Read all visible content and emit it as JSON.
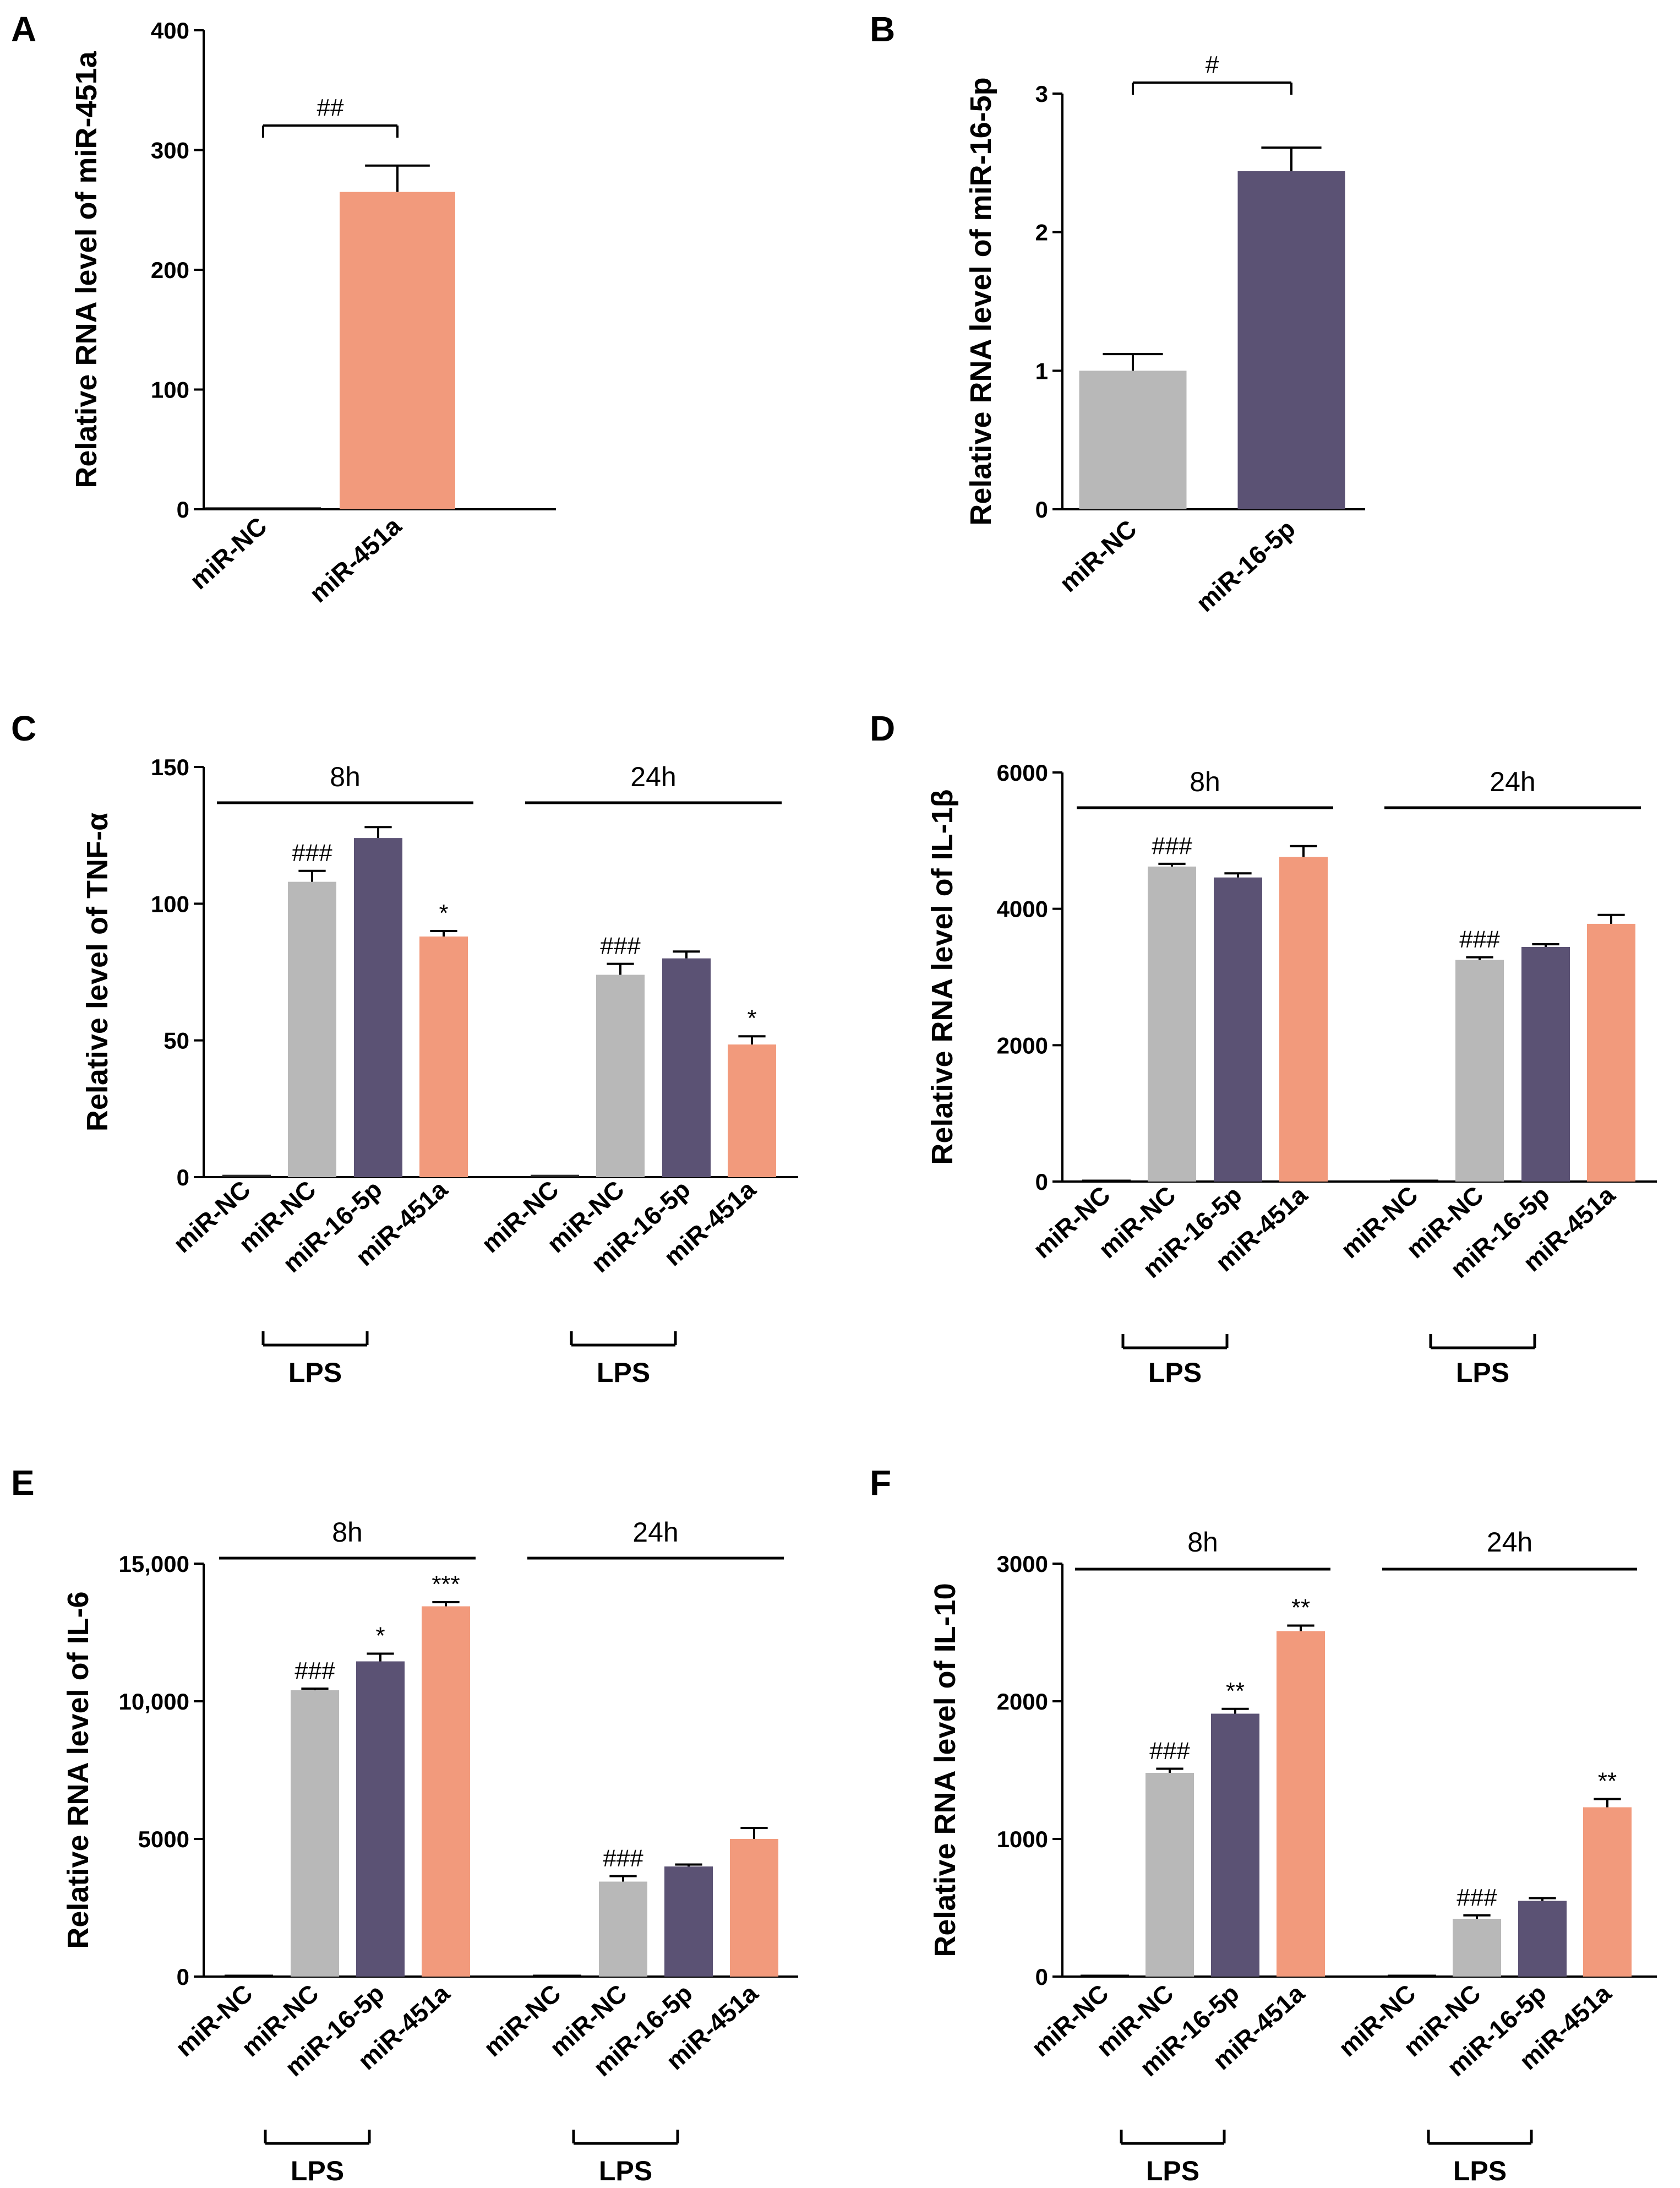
{
  "colors": {
    "miR-NC": "#b8b8b8",
    "miR-16-5p": "#5b5274",
    "miR-451a": "#f29a7c",
    "axis": "#000000"
  },
  "chart_data": [
    {
      "panel": "A",
      "type": "bar",
      "ylabel": "Relative RNA level of miR-451a",
      "ylim": [
        0,
        400
      ],
      "yticks": [
        "0",
        "100",
        "200",
        "300",
        "400"
      ],
      "categories": [
        "miR-NC",
        "miR-451a"
      ],
      "bars": [
        {
          "category": "miR-NC",
          "value": 1,
          "error": 0,
          "color": "#b8b8b8"
        },
        {
          "category": "miR-451a",
          "value": 265,
          "error": 22,
          "color": "#f29a7c"
        }
      ],
      "comparison": {
        "from": 0,
        "to": 1,
        "label": "##"
      }
    },
    {
      "panel": "B",
      "type": "bar",
      "ylabel": "Relative RNA level of miR-16-5p",
      "ylim": [
        0,
        3
      ],
      "yticks": [
        "0",
        "1",
        "2",
        "3"
      ],
      "categories": [
        "miR-NC",
        "miR-16-5p"
      ],
      "bars": [
        {
          "category": "miR-NC",
          "value": 1.0,
          "error": 0.12,
          "color": "#b8b8b8"
        },
        {
          "category": "miR-16-5p",
          "value": 2.44,
          "error": 0.17,
          "color": "#5b5274"
        }
      ],
      "comparison": {
        "from": 0,
        "to": 1,
        "label": "#"
      }
    },
    {
      "panel": "C",
      "type": "bar",
      "ylabel": "Relative level of TNF-α",
      "ylim": [
        0,
        150
      ],
      "yticks": [
        "0",
        "50",
        "100",
        "150"
      ],
      "categories": [
        "miR-NC",
        "miR-NC",
        "miR-16-5p",
        "miR-451a"
      ],
      "groups": [
        {
          "label": "8h",
          "lps_label": "LPS",
          "bars": [
            {
              "category": "miR-NC",
              "value": 1,
              "error": 0,
              "color": "#b8b8b8",
              "sig": ""
            },
            {
              "category": "miR-NC",
              "value": 108,
              "error": 4,
              "color": "#b8b8b8",
              "sig": "###"
            },
            {
              "category": "miR-16-5p",
              "value": 124,
              "error": 4,
              "color": "#5b5274",
              "sig": ""
            },
            {
              "category": "miR-451a",
              "value": 88,
              "error": 2,
              "color": "#f29a7c",
              "sig": "*"
            }
          ]
        },
        {
          "label": "24h",
          "lps_label": "LPS",
          "bars": [
            {
              "category": "miR-NC",
              "value": 1,
              "error": 0,
              "color": "#b8b8b8",
              "sig": ""
            },
            {
              "category": "miR-NC",
              "value": 74,
              "error": 4,
              "color": "#b8b8b8",
              "sig": "###"
            },
            {
              "category": "miR-16-5p",
              "value": 80,
              "error": 2.5,
              "color": "#5b5274",
              "sig": ""
            },
            {
              "category": "miR-451a",
              "value": 48.5,
              "error": 3,
              "color": "#f29a7c",
              "sig": "*"
            }
          ]
        }
      ]
    },
    {
      "panel": "D",
      "type": "bar",
      "ylabel": "Relative RNA level of IL-1β",
      "ylim": [
        0,
        6000
      ],
      "yticks": [
        "0",
        "2000",
        "4000",
        "6000"
      ],
      "categories": [
        "miR-NC",
        "miR-NC",
        "miR-16-5p",
        "miR-451a"
      ],
      "groups": [
        {
          "label": "8h",
          "lps_label": "LPS",
          "bars": [
            {
              "category": "miR-NC",
              "value": 0,
              "error": 0,
              "color": "#b8b8b8",
              "sig": ""
            },
            {
              "category": "miR-NC",
              "value": 4620,
              "error": 40,
              "color": "#b8b8b8",
              "sig": "###"
            },
            {
              "category": "miR-16-5p",
              "value": 4460,
              "error": 60,
              "color": "#5b5274",
              "sig": ""
            },
            {
              "category": "miR-451a",
              "value": 4760,
              "error": 160,
              "color": "#f29a7c",
              "sig": ""
            }
          ]
        },
        {
          "label": "24h",
          "lps_label": "LPS",
          "bars": [
            {
              "category": "miR-NC",
              "value": 0,
              "error": 0,
              "color": "#b8b8b8",
              "sig": ""
            },
            {
              "category": "miR-NC",
              "value": 3250,
              "error": 40,
              "color": "#b8b8b8",
              "sig": "###"
            },
            {
              "category": "miR-16-5p",
              "value": 3440,
              "error": 40,
              "color": "#5b5274",
              "sig": ""
            },
            {
              "category": "miR-451a",
              "value": 3780,
              "error": 130,
              "color": "#f29a7c",
              "sig": ""
            }
          ]
        }
      ]
    },
    {
      "panel": "E",
      "type": "bar",
      "ylabel": "Relative RNA level of IL-6",
      "ylim": [
        0,
        15000
      ],
      "yticks": [
        "0",
        "5000",
        "10,000",
        "15,000"
      ],
      "categories": [
        "miR-NC",
        "miR-NC",
        "miR-16-5p",
        "miR-451a"
      ],
      "groups": [
        {
          "label": "8h",
          "lps_label": "LPS",
          "bars": [
            {
              "category": "miR-NC",
              "value": 0,
              "error": 0,
              "color": "#b8b8b8",
              "sig": ""
            },
            {
              "category": "miR-NC",
              "value": 10400,
              "error": 60,
              "color": "#b8b8b8",
              "sig": "###"
            },
            {
              "category": "miR-16-5p",
              "value": 11450,
              "error": 280,
              "color": "#5b5274",
              "sig": "*"
            },
            {
              "category": "miR-451a",
              "value": 13450,
              "error": 150,
              "color": "#f29a7c",
              "sig": "***"
            }
          ]
        },
        {
          "label": "24h",
          "lps_label": "LPS",
          "bars": [
            {
              "category": "miR-NC",
              "value": 0,
              "error": 0,
              "color": "#b8b8b8",
              "sig": ""
            },
            {
              "category": "miR-NC",
              "value": 3450,
              "error": 200,
              "color": "#b8b8b8",
              "sig": "###"
            },
            {
              "category": "miR-16-5p",
              "value": 4000,
              "error": 70,
              "color": "#5b5274",
              "sig": ""
            },
            {
              "category": "miR-451a",
              "value": 5000,
              "error": 400,
              "color": "#f29a7c",
              "sig": ""
            }
          ]
        }
      ]
    },
    {
      "panel": "F",
      "type": "bar",
      "ylabel": "Relative RNA level of IL-10",
      "ylim": [
        0,
        3000
      ],
      "yticks": [
        "0",
        "1000",
        "2000",
        "3000"
      ],
      "categories": [
        "miR-NC",
        "miR-NC",
        "miR-16-5p",
        "miR-451a"
      ],
      "groups": [
        {
          "label": "8h",
          "lps_label": "LPS",
          "bars": [
            {
              "category": "miR-NC",
              "value": 0,
              "error": 0,
              "color": "#b8b8b8",
              "sig": ""
            },
            {
              "category": "miR-NC",
              "value": 1480,
              "error": 30,
              "color": "#b8b8b8",
              "sig": "###"
            },
            {
              "category": "miR-16-5p",
              "value": 1910,
              "error": 35,
              "color": "#5b5274",
              "sig": "**"
            },
            {
              "category": "miR-451a",
              "value": 2510,
              "error": 40,
              "color": "#f29a7c",
              "sig": "**"
            }
          ]
        },
        {
          "label": "24h",
          "lps_label": "LPS",
          "bars": [
            {
              "category": "miR-NC",
              "value": 0,
              "error": 0,
              "color": "#b8b8b8",
              "sig": ""
            },
            {
              "category": "miR-NC",
              "value": 420,
              "error": 25,
              "color": "#b8b8b8",
              "sig": "###"
            },
            {
              "category": "miR-16-5p",
              "value": 550,
              "error": 20,
              "color": "#5b5274",
              "sig": ""
            },
            {
              "category": "miR-451a",
              "value": 1230,
              "error": 60,
              "color": "#f29a7c",
              "sig": "**"
            }
          ]
        }
      ]
    }
  ]
}
